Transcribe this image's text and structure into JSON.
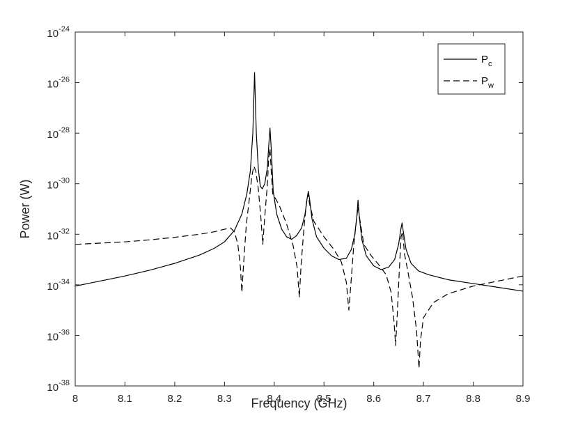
{
  "chart_data": {
    "type": "line",
    "xlabel": "Frequency (GHz)",
    "ylabel": "Power (W)",
    "xlim": [
      8.0,
      8.9
    ],
    "ylim": [
      1e-38,
      1e-24
    ],
    "yscale": "log",
    "grid": false,
    "legend_position": "top-right",
    "x_ticks": [
      "8",
      "8.1",
      "8.2",
      "8.3",
      "8.4",
      "8.5",
      "8.6",
      "8.7",
      "8.8",
      "8.9"
    ],
    "y_ticks": [
      {
        "base": "10",
        "exp": "-38"
      },
      {
        "base": "10",
        "exp": "-36"
      },
      {
        "base": "10",
        "exp": "-34"
      },
      {
        "base": "10",
        "exp": "-32"
      },
      {
        "base": "10",
        "exp": "-30"
      },
      {
        "base": "10",
        "exp": "-28"
      },
      {
        "base": "10",
        "exp": "-26"
      },
      {
        "base": "10",
        "exp": "-24"
      }
    ],
    "series": [
      {
        "name": "P",
        "sub": "c",
        "style": "solid",
        "color": "#000000",
        "points": [
          [
            8.0,
            -34.05
          ],
          [
            8.05,
            -33.85
          ],
          [
            8.1,
            -33.65
          ],
          [
            8.15,
            -33.42
          ],
          [
            8.2,
            -33.15
          ],
          [
            8.25,
            -32.82
          ],
          [
            8.28,
            -32.55
          ],
          [
            8.3,
            -32.3
          ],
          [
            8.32,
            -31.85
          ],
          [
            8.335,
            -31.2
          ],
          [
            8.345,
            -30.4
          ],
          [
            8.352,
            -29.5
          ],
          [
            8.357,
            -28.0
          ],
          [
            8.3605,
            -25.6
          ],
          [
            8.364,
            -28.0
          ],
          [
            8.368,
            -29.4
          ],
          [
            8.372,
            -30.1
          ],
          [
            8.376,
            -30.2
          ],
          [
            8.381,
            -30.0
          ],
          [
            8.386,
            -29.4
          ],
          [
            8.389,
            -28.5
          ],
          [
            8.3915,
            -27.8
          ],
          [
            8.394,
            -28.6
          ],
          [
            8.398,
            -30.3
          ],
          [
            8.405,
            -31.2
          ],
          [
            8.415,
            -31.8
          ],
          [
            8.425,
            -32.1
          ],
          [
            8.435,
            -32.2
          ],
          [
            8.445,
            -32.05
          ],
          [
            8.455,
            -31.75
          ],
          [
            8.462,
            -31.2
          ],
          [
            8.466,
            -30.6
          ],
          [
            8.4685,
            -30.3
          ],
          [
            8.471,
            -30.6
          ],
          [
            8.476,
            -31.4
          ],
          [
            8.485,
            -32.1
          ],
          [
            8.5,
            -32.55
          ],
          [
            8.515,
            -32.85
          ],
          [
            8.53,
            -33.0
          ],
          [
            8.545,
            -32.95
          ],
          [
            8.555,
            -32.6
          ],
          [
            8.562,
            -32.0
          ],
          [
            8.566,
            -31.3
          ],
          [
            8.5685,
            -30.65
          ],
          [
            8.571,
            -31.3
          ],
          [
            8.576,
            -32.2
          ],
          [
            8.585,
            -32.85
          ],
          [
            8.6,
            -33.25
          ],
          [
            8.615,
            -33.4
          ],
          [
            8.63,
            -33.3
          ],
          [
            8.642,
            -33.0
          ],
          [
            8.65,
            -32.4
          ],
          [
            8.6545,
            -31.8
          ],
          [
            8.657,
            -31.55
          ],
          [
            8.6595,
            -31.9
          ],
          [
            8.665,
            -32.6
          ],
          [
            8.675,
            -33.15
          ],
          [
            8.69,
            -33.45
          ],
          [
            8.71,
            -33.6
          ],
          [
            8.75,
            -33.8
          ],
          [
            8.8,
            -33.95
          ],
          [
            8.85,
            -34.1
          ],
          [
            8.9,
            -34.25
          ]
        ]
      },
      {
        "name": "P",
        "sub": "w",
        "style": "dashed",
        "color": "#000000",
        "points": [
          [
            8.0,
            -32.4
          ],
          [
            8.05,
            -32.35
          ],
          [
            8.1,
            -32.3
          ],
          [
            8.15,
            -32.22
          ],
          [
            8.2,
            -32.12
          ],
          [
            8.25,
            -32.0
          ],
          [
            8.28,
            -31.9
          ],
          [
            8.3,
            -31.8
          ],
          [
            8.312,
            -31.75
          ],
          [
            8.32,
            -31.9
          ],
          [
            8.327,
            -32.4
          ],
          [
            8.332,
            -33.3
          ],
          [
            8.335,
            -34.3
          ],
          [
            8.338,
            -33.3
          ],
          [
            8.344,
            -31.6
          ],
          [
            8.35,
            -30.6
          ],
          [
            8.355,
            -29.7
          ],
          [
            8.359,
            -29.3
          ],
          [
            8.363,
            -29.5
          ],
          [
            8.368,
            -30.2
          ],
          [
            8.373,
            -31.3
          ],
          [
            8.377,
            -32.4
          ],
          [
            8.381,
            -31.3
          ],
          [
            8.386,
            -30.1
          ],
          [
            8.389,
            -29.0
          ],
          [
            8.3915,
            -28.6
          ],
          [
            8.394,
            -29.5
          ],
          [
            8.397,
            -30.4
          ],
          [
            8.4,
            -30.5
          ],
          [
            8.41,
            -30.85
          ],
          [
            8.425,
            -31.6
          ],
          [
            8.438,
            -32.45
          ],
          [
            8.446,
            -33.3
          ],
          [
            8.4505,
            -34.5
          ],
          [
            8.454,
            -33.2
          ],
          [
            8.46,
            -31.7
          ],
          [
            8.465,
            -30.7
          ],
          [
            8.468,
            -30.4
          ],
          [
            8.471,
            -30.8
          ],
          [
            8.48,
            -31.5
          ],
          [
            8.5,
            -32.1
          ],
          [
            8.52,
            -32.6
          ],
          [
            8.535,
            -33.1
          ],
          [
            8.545,
            -33.9
          ],
          [
            8.55,
            -35.0
          ],
          [
            8.554,
            -34.0
          ],
          [
            8.56,
            -32.4
          ],
          [
            8.565,
            -31.5
          ],
          [
            8.5685,
            -30.9
          ],
          [
            8.572,
            -31.4
          ],
          [
            8.58,
            -32.4
          ],
          [
            8.595,
            -32.85
          ],
          [
            8.61,
            -33.2
          ],
          [
            8.625,
            -33.6
          ],
          [
            8.635,
            -34.3
          ],
          [
            8.641,
            -35.5
          ],
          [
            8.644,
            -36.4
          ],
          [
            8.647,
            -35.3
          ],
          [
            8.651,
            -33.6
          ],
          [
            8.655,
            -32.1
          ],
          [
            8.658,
            -31.9
          ],
          [
            8.662,
            -32.8
          ],
          [
            8.668,
            -33.4
          ],
          [
            8.678,
            -34.5
          ],
          [
            8.686,
            -35.8
          ],
          [
            8.691,
            -37.3
          ],
          [
            8.694,
            -36.2
          ],
          [
            8.7,
            -35.3
          ],
          [
            8.72,
            -34.7
          ],
          [
            8.75,
            -34.35
          ],
          [
            8.8,
            -34.05
          ],
          [
            8.85,
            -33.85
          ],
          [
            8.9,
            -33.65
          ]
        ]
      }
    ]
  }
}
